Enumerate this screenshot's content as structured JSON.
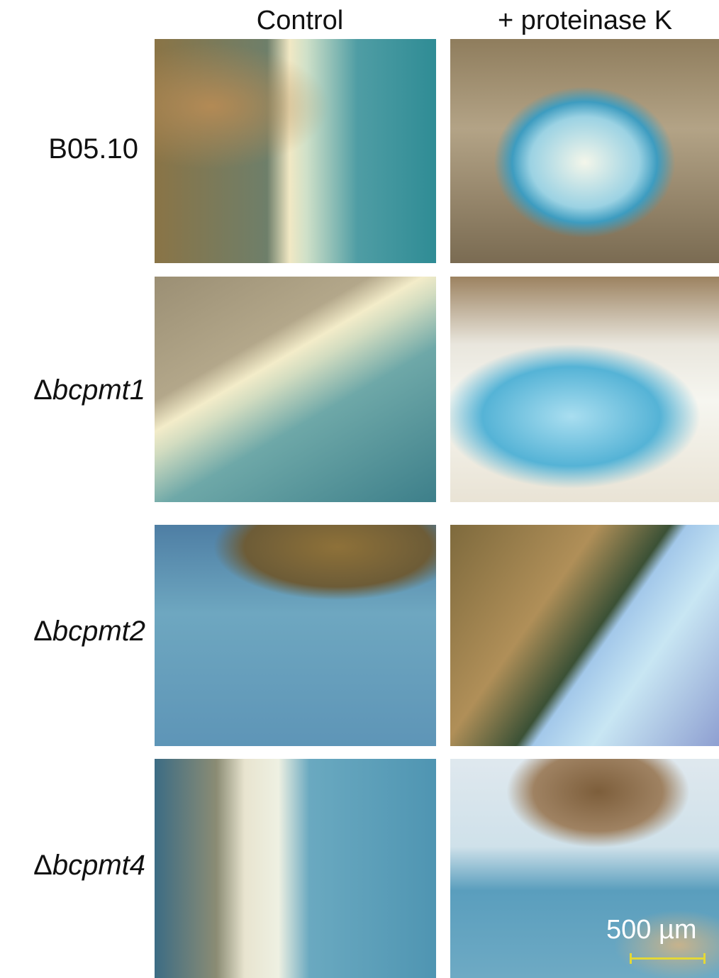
{
  "header": {
    "columns": [
      "Control",
      "+ proteinase K"
    ]
  },
  "rows": [
    {
      "label": "B05.10"
    },
    {
      "symbol": "Δ",
      "gene": "bcpmt1"
    },
    {
      "symbol": "Δ",
      "gene": "bcpmt2"
    },
    {
      "symbol": "Δ",
      "gene": "bcpmt4"
    }
  ],
  "scale_bar": {
    "label": "500 µm"
  }
}
